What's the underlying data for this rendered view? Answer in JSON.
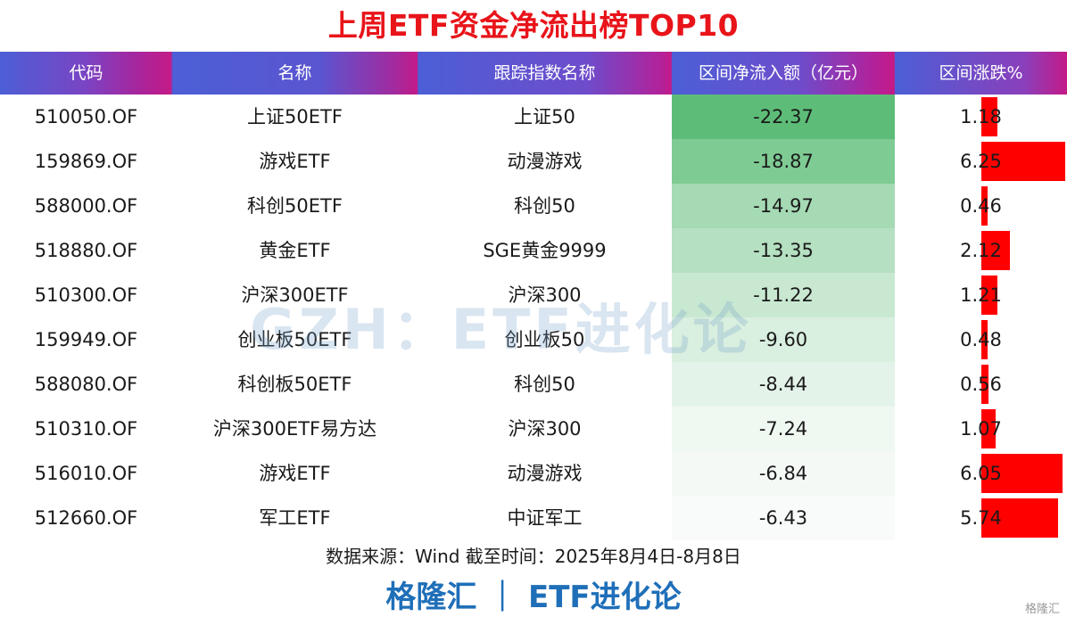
{
  "title": "上周ETF资金净流出榜TOP10",
  "columns": [
    "代码",
    "名称",
    "跟踪指数名称",
    "区间净流入额（亿元）",
    "区间涨跌%"
  ],
  "rows": [
    {
      "code": "510050.OF",
      "name": "上证50ETF",
      "index": "上证50",
      "flow": "-22.37",
      "change": "1.18"
    },
    {
      "code": "159869.OF",
      "name": "游戏ETF",
      "index": "动漫游戏",
      "flow": "-18.87",
      "change": "6.25"
    },
    {
      "code": "588000.OF",
      "name": "科创50ETF",
      "index": "科创50",
      "flow": "-14.97",
      "change": "0.46"
    },
    {
      "code": "518880.OF",
      "name": "黄金ETF",
      "index": "SGE黄金9999",
      "flow": "-13.35",
      "change": "2.12"
    },
    {
      "code": "510300.OF",
      "name": "沪深300ETF",
      "index": "沪深300",
      "flow": "-11.22",
      "change": "1.21"
    },
    {
      "code": "159949.OF",
      "name": "创业板50ETF",
      "index": "创业板50",
      "flow": "-9.60",
      "change": "0.48"
    },
    {
      "code": "588080.OF",
      "name": "科创板50ETF",
      "index": "科创50",
      "flow": "-8.44",
      "change": "0.56"
    },
    {
      "code": "510310.OF",
      "name": "沪深300ETF易方达",
      "index": "沪深300",
      "flow": "-7.24",
      "change": "1.07"
    },
    {
      "code": "516010.OF",
      "name": "游戏ETF",
      "index": "动漫游戏",
      "flow": "-6.84",
      "change": "6.05"
    },
    {
      "code": "512660.OF",
      "name": "军工ETF",
      "index": "中证军工",
      "flow": "-6.43",
      "change": "5.74"
    }
  ],
  "watermark": "GZH：ETF进化论",
  "source": "数据来源：Wind 截至时间：2025年8月4日-8月8日",
  "brand": "格隆汇 ｜ ETF进化论",
  "logo": "格隆汇",
  "colors": {
    "title": "#e8141a",
    "flow_max": "#5dbd78",
    "flow_min": "#f8fbf9",
    "change_bar": "#ff0000",
    "brand": "#1f6fb8"
  }
}
